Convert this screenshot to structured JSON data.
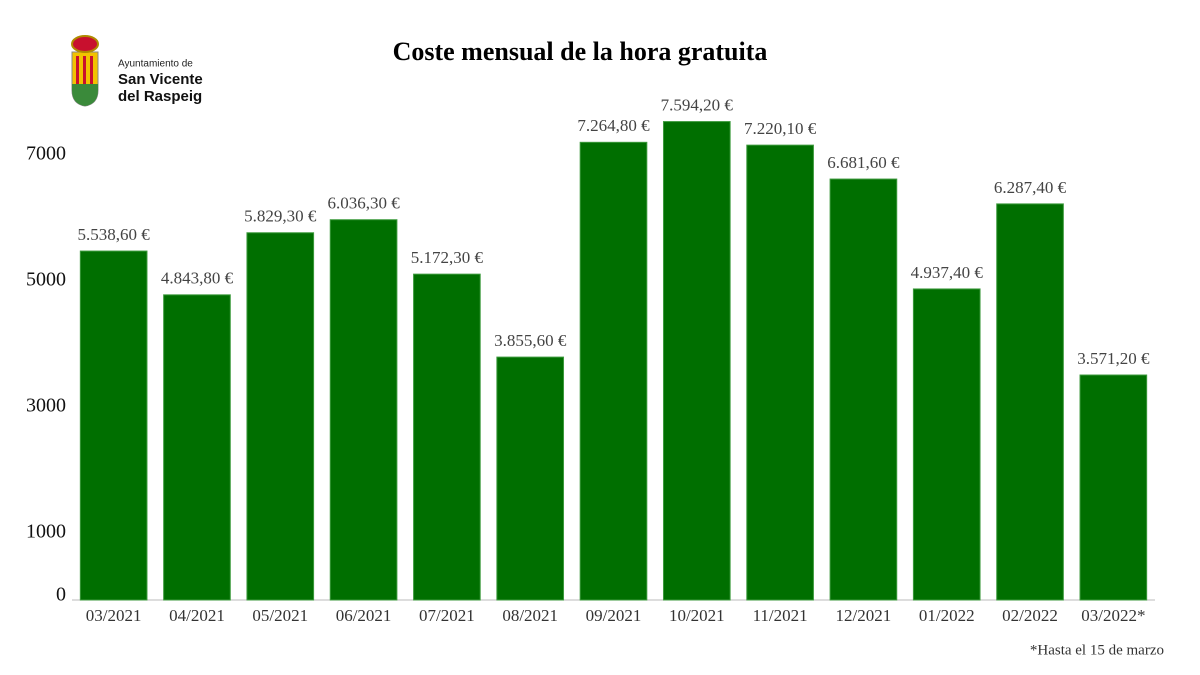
{
  "logo": {
    "line1": "Ayuntamiento de",
    "line2": "San Vicente",
    "line3": "del Raspeig"
  },
  "chart_data": {
    "type": "bar",
    "title": "Coste mensual de la hora gratuita",
    "categories": [
      "03/2021",
      "04/2021",
      "05/2021",
      "06/2021",
      "07/2021",
      "08/2021",
      "09/2021",
      "10/2021",
      "11/2021",
      "12/2021",
      "01/2022",
      "02/2022",
      "03/2022*"
    ],
    "values": [
      5538.6,
      4843.8,
      5829.3,
      6036.3,
      5172.3,
      3855.6,
      7264.8,
      7594.2,
      7220.1,
      6681.6,
      4937.4,
      6287.4,
      3571.2
    ],
    "value_labels": [
      "5.538,60 €",
      "4.843,80 €",
      "5.829,30 €",
      "6.036,30 €",
      "5.172,30 €",
      "3.855,60 €",
      "7.264,80 €",
      "7.594,20 €",
      "7.220,10 €",
      "6.681,60 €",
      "4.937,40 €",
      "6.287,40 €",
      "3.571,20 €"
    ],
    "color": "#006f00",
    "ylim": [
      0,
      8000
    ],
    "yticks": [
      0,
      1000,
      3000,
      5000,
      7000
    ],
    "grid": false,
    "footnote": "*Hasta el 15 de marzo"
  }
}
